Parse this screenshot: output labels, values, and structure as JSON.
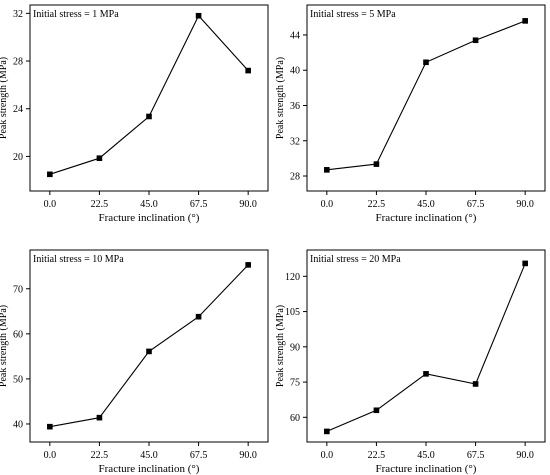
{
  "chart_data": [
    {
      "type": "line",
      "annotation": "Initial stress = 1 MPa",
      "xlabel": "Fracture inclination (°)",
      "ylabel": "Peak strength (MPa)",
      "x": [
        0.0,
        22.5,
        45.0,
        67.5,
        90.0
      ],
      "x_tick_labels": [
        "0.0",
        "22.5",
        "45.0",
        "67.5",
        "90.0"
      ],
      "xlim": [
        -9.0,
        99.0
      ],
      "series": [
        {
          "values": [
            18.5,
            19.85,
            23.35,
            31.8,
            27.2
          ]
        }
      ],
      "y_ticks": [
        20,
        24,
        28,
        32
      ],
      "y_tick_labels": [
        "20",
        "24",
        "28",
        "32"
      ],
      "ylim": [
        17.1,
        32.7
      ],
      "grid": false,
      "marker": "square"
    },
    {
      "type": "line",
      "annotation": "Initial stress = 5 MPa",
      "xlabel": "Fracture inclination (°)",
      "ylabel": "Peak strength (MPa)",
      "x": [
        0.0,
        22.5,
        45.0,
        67.5,
        90.0
      ],
      "x_tick_labels": [
        "0.0",
        "22.5",
        "45.0",
        "67.5",
        "90.0"
      ],
      "xlim": [
        -9.0,
        99.0
      ],
      "series": [
        {
          "values": [
            28.7,
            29.35,
            40.9,
            43.4,
            45.6
          ]
        }
      ],
      "y_ticks": [
        28,
        32,
        36,
        40,
        44
      ],
      "y_tick_labels": [
        "28",
        "32",
        "36",
        "40",
        "44"
      ],
      "ylim": [
        26.3,
        47.4
      ],
      "grid": false,
      "marker": "square"
    },
    {
      "type": "line",
      "annotation": "Initial stress = 10 MPa",
      "xlabel": "Fracture inclination (°)",
      "ylabel": "Peak strength (MPa)",
      "x": [
        0.0,
        22.5,
        45.0,
        67.5,
        90.0
      ],
      "x_tick_labels": [
        "0.0",
        "22.5",
        "45.0",
        "67.5",
        "90.0"
      ],
      "xlim": [
        -9.0,
        99.0
      ],
      "series": [
        {
          "values": [
            39.4,
            41.4,
            56.1,
            63.8,
            75.3
          ]
        }
      ],
      "y_ticks": [
        40,
        50,
        60,
        70
      ],
      "y_tick_labels": [
        "40",
        "50",
        "60",
        "70"
      ],
      "ylim": [
        36.0,
        78.6
      ],
      "grid": false,
      "marker": "square"
    },
    {
      "type": "line",
      "annotation": "Initial stress = 20 MPa",
      "xlabel": "Fracture inclination (°)",
      "ylabel": "Peak strength (MPa)",
      "x": [
        0.0,
        22.5,
        45.0,
        67.5,
        90.0
      ],
      "x_tick_labels": [
        "0.0",
        "22.5",
        "45.0",
        "67.5",
        "90.0"
      ],
      "xlim": [
        -9.0,
        99.0
      ],
      "series": [
        {
          "values": [
            54.0,
            63.0,
            78.5,
            74.2,
            125.5
          ]
        }
      ],
      "y_ticks": [
        60,
        75,
        90,
        105,
        120
      ],
      "y_tick_labels": [
        "60",
        "75",
        "90",
        "105",
        "120"
      ],
      "ylim": [
        49.5,
        131.2
      ],
      "grid": false,
      "marker": "square"
    }
  ]
}
